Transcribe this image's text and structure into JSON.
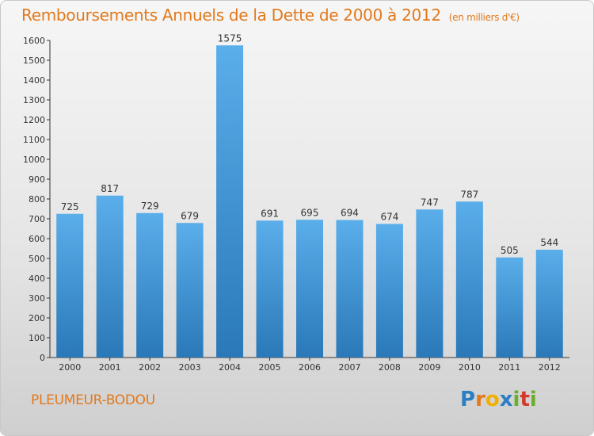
{
  "header": {
    "title": "Remboursements Annuels de la Dette de 2000 à 2012",
    "subtitle": "(en milliers d'€)"
  },
  "footer": {
    "commune": "PLEUMEUR-BODOU",
    "logo_letters": [
      "P",
      "r",
      "o",
      "x",
      "i",
      "t",
      "i"
    ],
    "logo_colors": [
      "#2a7ec4",
      "#e2791c",
      "#f0b000",
      "#2a7ec4",
      "#6aae2a",
      "#d23a2a",
      "#6aae2a"
    ]
  },
  "chart_data": {
    "type": "bar",
    "categories": [
      "2000",
      "2001",
      "2002",
      "2003",
      "2004",
      "2005",
      "2006",
      "2007",
      "2008",
      "2009",
      "2010",
      "2011",
      "2012"
    ],
    "values": [
      725,
      817,
      729,
      679,
      1575,
      691,
      695,
      694,
      674,
      747,
      787,
      505,
      544
    ],
    "ylim": [
      0,
      1600
    ],
    "yticks": [
      0,
      100,
      200,
      300,
      400,
      500,
      600,
      700,
      800,
      900,
      1000,
      1100,
      1200,
      1300,
      1400,
      1500,
      1600
    ],
    "grid": false,
    "colors": {
      "bar_top": "#5aaeea",
      "bar_bottom": "#2a78b8",
      "axis": "#333333"
    }
  }
}
